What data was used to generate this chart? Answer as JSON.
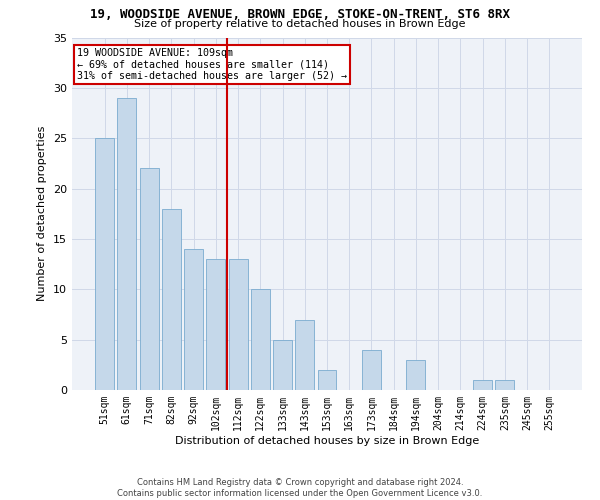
{
  "title1": "19, WOODSIDE AVENUE, BROWN EDGE, STOKE-ON-TRENT, ST6 8RX",
  "title2": "Size of property relative to detached houses in Brown Edge",
  "xlabel": "Distribution of detached houses by size in Brown Edge",
  "ylabel": "Number of detached properties",
  "categories": [
    "51sqm",
    "61sqm",
    "71sqm",
    "82sqm",
    "92sqm",
    "102sqm",
    "112sqm",
    "122sqm",
    "133sqm",
    "143sqm",
    "153sqm",
    "163sqm",
    "173sqm",
    "184sqm",
    "194sqm",
    "204sqm",
    "214sqm",
    "224sqm",
    "235sqm",
    "245sqm",
    "255sqm"
  ],
  "values": [
    25,
    29,
    22,
    18,
    14,
    13,
    13,
    10,
    5,
    7,
    2,
    0,
    4,
    0,
    3,
    0,
    0,
    1,
    1,
    0,
    0
  ],
  "bar_color": "#c5d8ea",
  "bar_edge_color": "#7aabcf",
  "vline_color": "#cc0000",
  "annotation_text": "19 WOODSIDE AVENUE: 109sqm\n← 69% of detached houses are smaller (114)\n31% of semi-detached houses are larger (52) →",
  "annotation_box_color": "#cc0000",
  "ylim": [
    0,
    35
  ],
  "yticks": [
    0,
    5,
    10,
    15,
    20,
    25,
    30,
    35
  ],
  "grid_color": "#d0d8e8",
  "background_color": "#eef2f8",
  "footer": "Contains HM Land Registry data © Crown copyright and database right 2024.\nContains public sector information licensed under the Open Government Licence v3.0."
}
